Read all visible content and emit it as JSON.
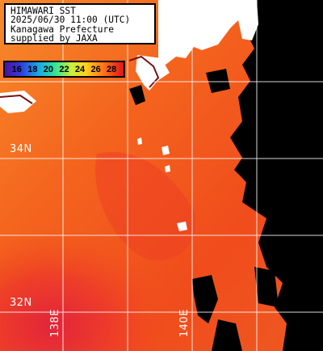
{
  "map": {
    "title_lines": [
      "HIMAWARI SST",
      "2025/06/30 11:00 (UTC)",
      "Kanagawa Prefecture",
      "supplied by JAXA"
    ],
    "legend_values": [
      "16",
      "18",
      "20",
      "22",
      "24",
      "26",
      "28"
    ],
    "legend_colors": [
      "#4a12a0",
      "#2f3fe0",
      "#1aa6e8",
      "#2fe39a",
      "#c8f03a",
      "#ffd21e",
      "#ff7a1a",
      "#e0141a"
    ],
    "latitude_labels": [
      "34N",
      "32N"
    ],
    "longitude_labels": [
      "138E",
      "140E"
    ],
    "colors": {
      "sea_warm": "#f2541a",
      "sea_hot": "#e8322a",
      "land": "#ffffff",
      "no_data": "#000000",
      "grid": "#ffffff"
    }
  }
}
